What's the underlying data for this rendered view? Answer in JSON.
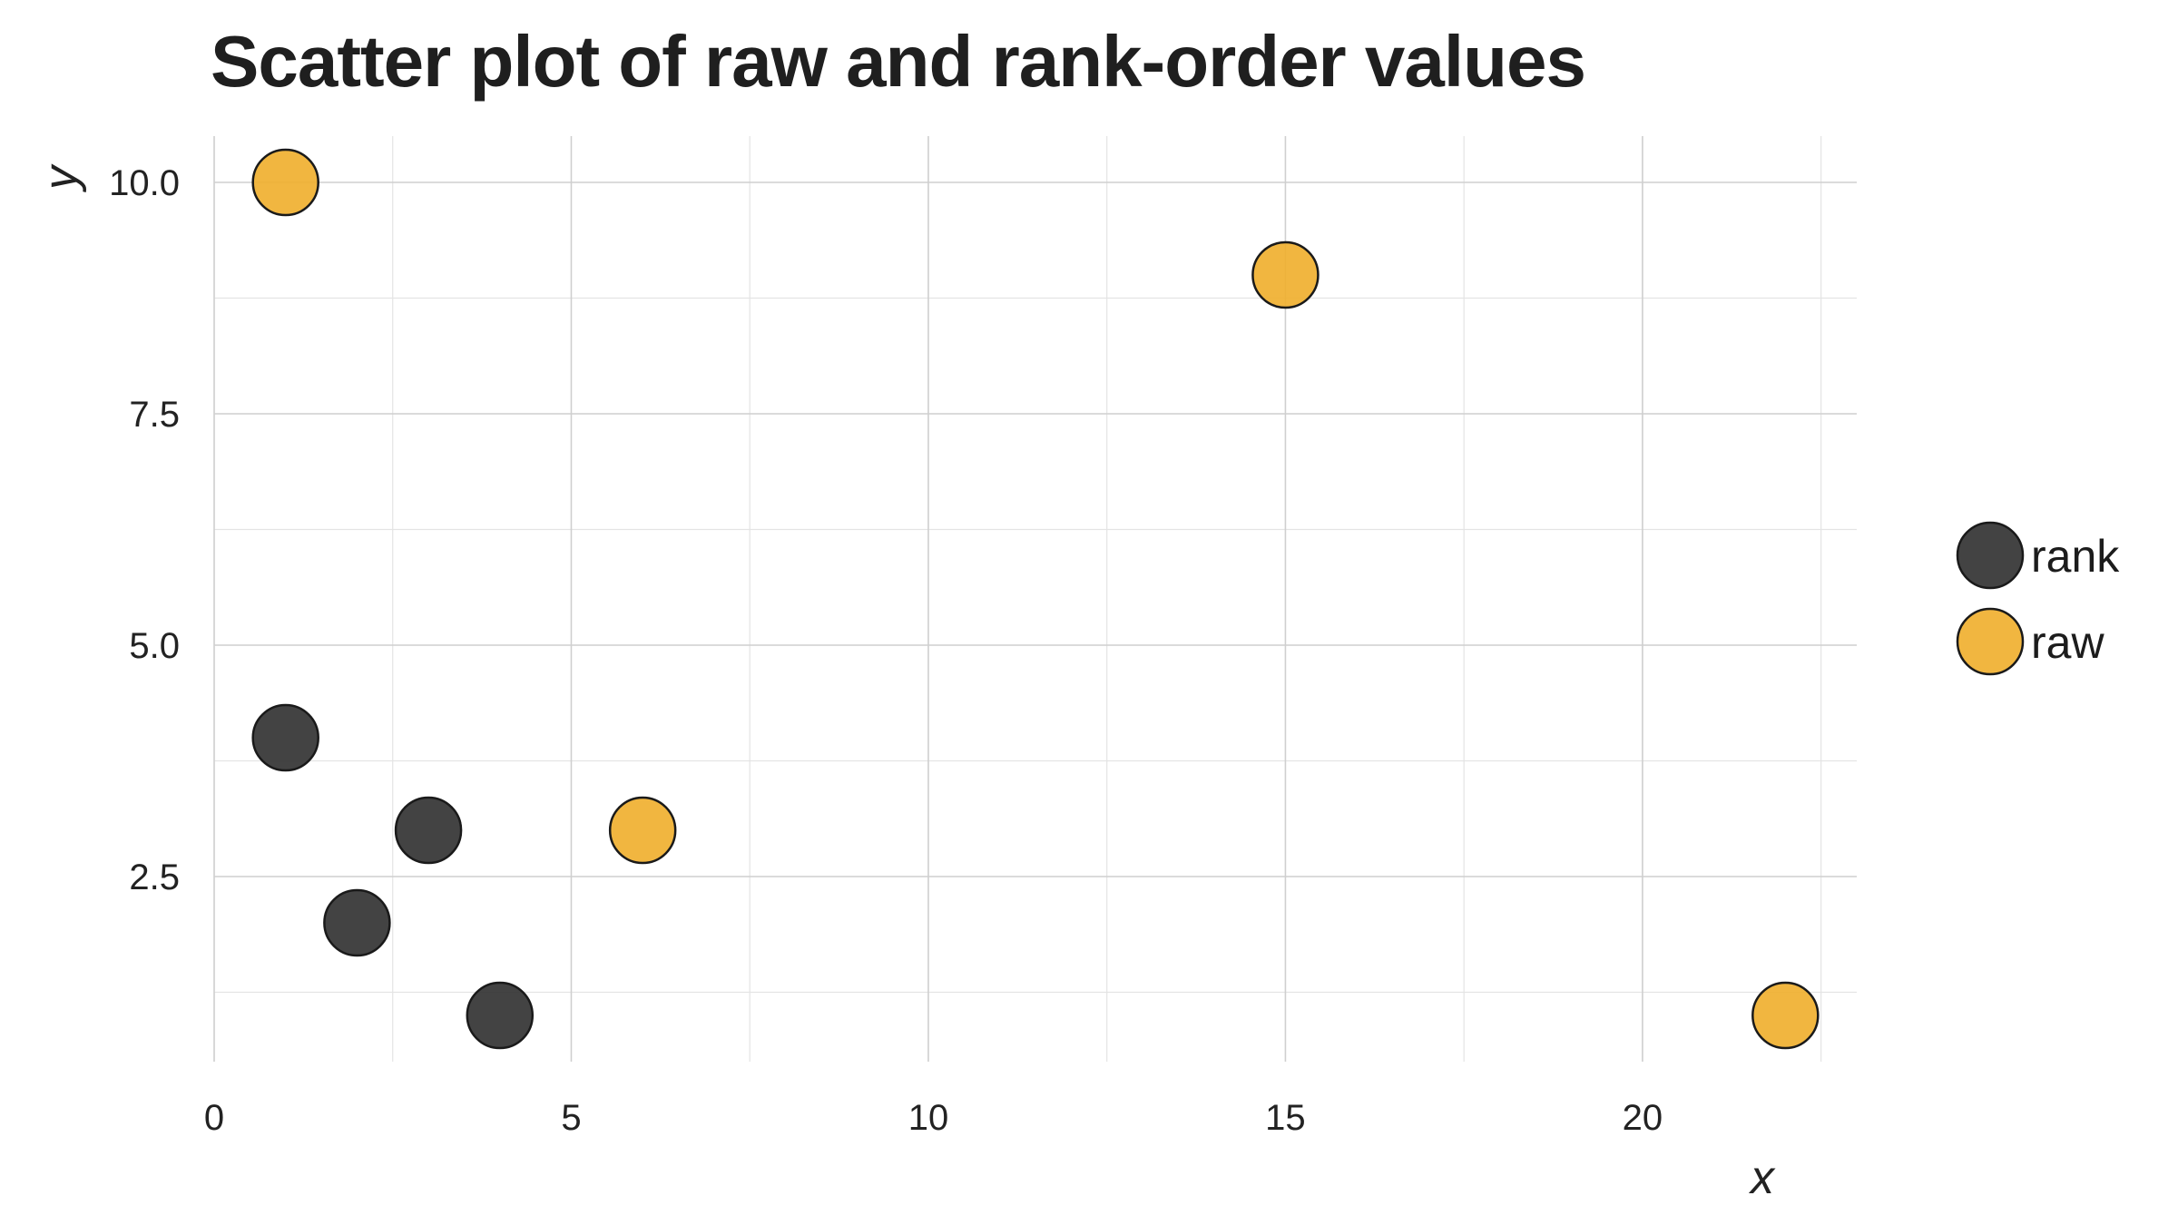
{
  "chart_data": {
    "type": "scatter",
    "title": "Scatter plot of raw and rank-order values",
    "xlabel": "x",
    "ylabel": "y",
    "xlim": [
      0,
      23
    ],
    "ylim": [
      0.5,
      10.5
    ],
    "x_ticks": [
      0,
      5,
      10,
      15,
      20
    ],
    "x_tick_labels": [
      "0",
      "5",
      "10",
      "15",
      "20"
    ],
    "y_ticks": [
      2.5,
      5.0,
      7.5,
      10.0
    ],
    "y_tick_labels": [
      "2.5",
      "5.0",
      "7.5",
      "10.0"
    ],
    "grid": true,
    "legend_position": "right",
    "series": [
      {
        "name": "rank",
        "color": "#333333",
        "points": [
          {
            "x": 1,
            "y": 4
          },
          {
            "x": 2,
            "y": 2
          },
          {
            "x": 3,
            "y": 3
          },
          {
            "x": 4,
            "y": 1
          }
        ]
      },
      {
        "name": "raw",
        "color": "#f0b030",
        "points": [
          {
            "x": 1,
            "y": 10
          },
          {
            "x": 6,
            "y": 3
          },
          {
            "x": 15,
            "y": 9
          },
          {
            "x": 22,
            "y": 1
          }
        ]
      }
    ]
  }
}
